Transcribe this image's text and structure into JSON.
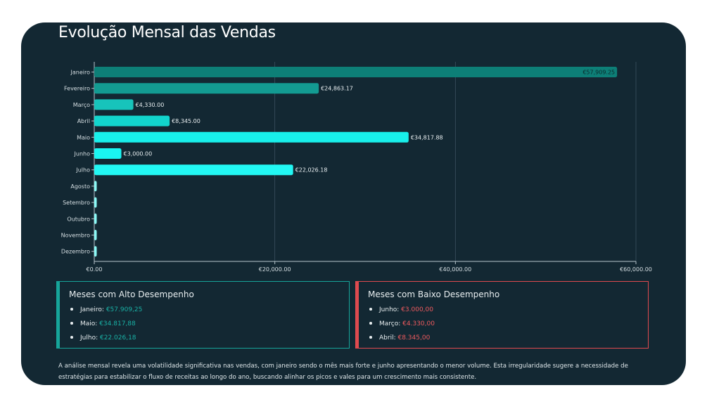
{
  "title": "Evolução Mensal das Vendas",
  "chart_data": {
    "type": "bar",
    "orientation": "horizontal",
    "categories": [
      "Janeiro",
      "Fevereiro",
      "Março",
      "Abril",
      "Maio",
      "Junho",
      "Julho",
      "Agosto",
      "Setembro",
      "Outubro",
      "Novembro",
      "Dezembro"
    ],
    "values": [
      57909.25,
      24863.17,
      4330.0,
      8345.0,
      34817.88,
      3000.0,
      22026.18,
      0,
      0,
      0,
      0,
      0
    ],
    "data_labels": [
      "€57,909.25",
      "€24,863.17",
      "€4,330.00",
      "€8,345.00",
      "€34,817.88",
      "€3,000.00",
      "€22,026.18",
      "",
      "",
      "",
      "",
      ""
    ],
    "bar_colors": [
      "#0d7f77",
      "#139b92",
      "#17c4bb",
      "#12d5cd",
      "#18f0eb",
      "#1af5f2",
      "#22f7f3",
      "#8af9f6",
      "#8af9f6",
      "#8af9f6",
      "#8af9f6",
      "#8af9f6"
    ],
    "x_ticks": [
      0,
      20000,
      40000,
      60000
    ],
    "x_tick_labels": [
      "€0.00",
      "€20,000.00",
      "€40,000.00",
      "€60,000.00"
    ],
    "xlim": [
      0,
      60000
    ],
    "grid": "vertical",
    "title": "Evolução Mensal das Vendas"
  },
  "high_card": {
    "title": "Meses com Alto Desempenho",
    "items": [
      {
        "month": "Janeiro:",
        "value": "€57.909,25"
      },
      {
        "month": "Maio:",
        "value": "€34.817,88"
      },
      {
        "month": "Julho:",
        "value": "€22.026,18"
      }
    ]
  },
  "low_card": {
    "title": "Meses com Baixo Desempenho",
    "items": [
      {
        "month": "Junho:",
        "value": "€3.000,00"
      },
      {
        "month": "Março:",
        "value": "€4.330,00"
      },
      {
        "month": "Abril:",
        "value": "€8.345,00"
      }
    ]
  },
  "summary": "A análise mensal revela uma volatilidade significativa nas vendas, com janeiro sendo o mês mais forte e junho apresentando o menor volume. Esta irregularidade sugere a necessidade de estratégias para estabilizar o fluxo de receitas ao longo do ano, buscando alinhar os picos e vales para um crescimento mais consistente.",
  "colors": {
    "background": "#132833",
    "grid": "#3a5260",
    "axis": "#b8c6cc",
    "high_accent": "#16a59a",
    "low_accent": "#e04a4f"
  }
}
